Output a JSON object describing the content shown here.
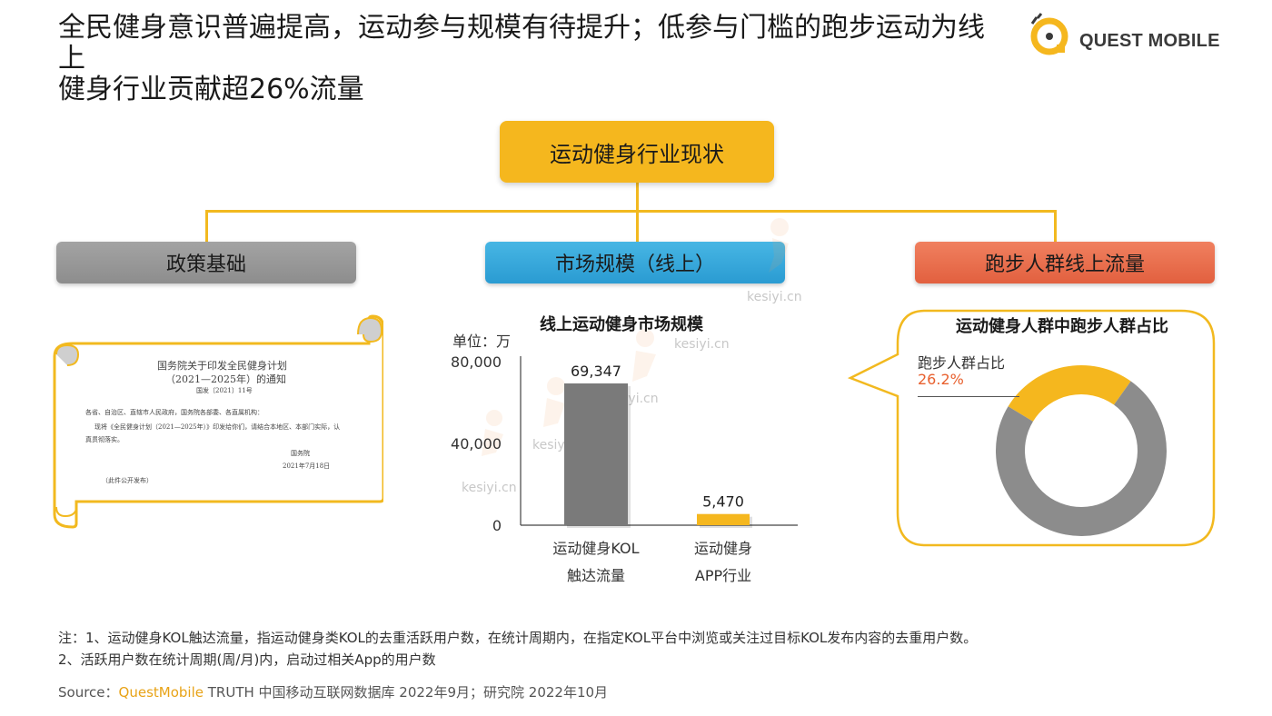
{
  "header": {
    "title_line1": "全民健身意识普遍提高，运动参与规模有待提升；低参与门槛的跑步运动为线上",
    "title_line2": "健身行业贡献超26%流量",
    "logo_text": "QUEST MOBILE"
  },
  "tree": {
    "root": "运动健身行业现状",
    "branches": [
      "政策基础",
      "市场规模（线上）",
      "跑步人群线上流量"
    ]
  },
  "policy_doc": {
    "heading1": "国务院关于印发全民健身计划",
    "heading2": "（2021—2025年）的通知",
    "doc_number": "国发〔2021〕11号",
    "line1": "各省、自治区、直辖市人民政府，国务院各部委、各直属机构：",
    "line2": "现将《全民健身计划（2021—2025年）》印发给你们，请结合本地区、本部门实际，认",
    "line3": "真贯彻落实。",
    "signature": "国务院",
    "date": "2021年7月18日",
    "footer": "（此件公开发布）"
  },
  "chart_data": [
    {
      "type": "bar",
      "title": "线上运动健身市场规模",
      "ylabel": "单位：万",
      "categories": [
        [
          "运动健身KOL",
          "触达流量"
        ],
        [
          "运动健身",
          "APP行业"
        ]
      ],
      "values": [
        69347,
        5470
      ],
      "value_labels": [
        "69,347",
        "5,470"
      ],
      "yticks": [
        "80,000",
        "40,000",
        "0"
      ],
      "ylim": [
        0,
        80000
      ],
      "colors": [
        "#7a7a7a",
        "#f5b71e"
      ]
    },
    {
      "type": "pie",
      "title": "运动健身人群中跑步人群占比",
      "slices": [
        {
          "name": "跑步人群占比",
          "value": 26.2,
          "label": "26.2%",
          "color": "#f5b71e"
        },
        {
          "value": 73.8,
          "color": "#8c8c8c"
        }
      ]
    }
  ],
  "notes": {
    "line1": "注：1、运动健身KOL触达流量，指运动健身类KOL的去重活跃用户数，在统计周期内，在指定KOL平台中浏览或关注过目标KOL发布内容的去重用户数。",
    "line2": "2、活跃用户数在统计周期(周/月)内，启动过相关App的用户数"
  },
  "source": {
    "prefix": "Source：",
    "brand": "QuestMobile",
    "rest": " TRUTH 中国移动互联网数据库 2022年9月；研究院 2022年10月"
  },
  "watermark": "kesiyi.cn"
}
